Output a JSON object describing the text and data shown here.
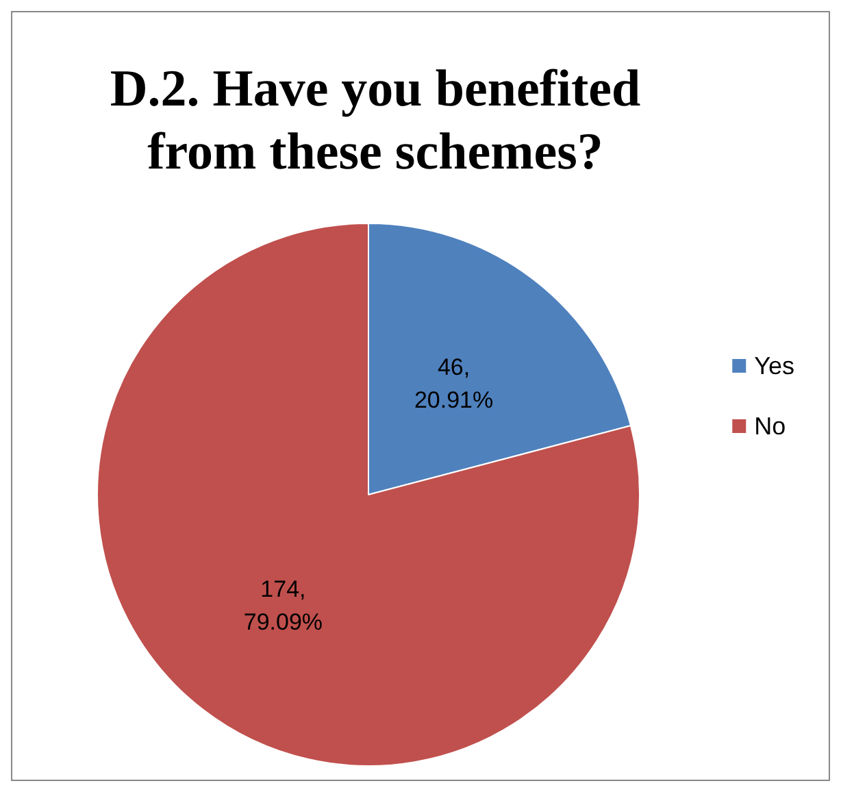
{
  "chart_data": {
    "type": "pie",
    "title": "D.2. Have you benefited\nfrom these schemes?",
    "categories": [
      "Yes",
      "No"
    ],
    "values": [
      46,
      174
    ],
    "colors": [
      "#4f81bd",
      "#c0504d"
    ],
    "value_labels": [
      "46,\n20.91%",
      "174,\n79.09%"
    ],
    "legend": "right"
  }
}
